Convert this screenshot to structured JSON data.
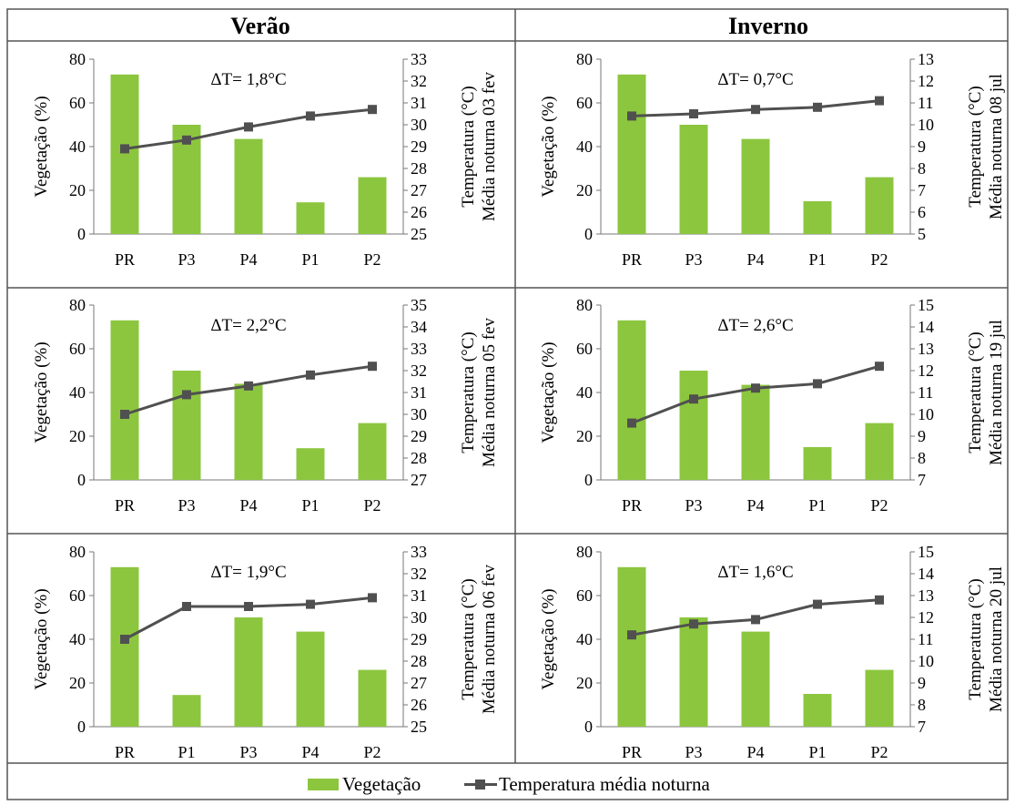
{
  "headers": {
    "left": "Verão",
    "right": "Inverno"
  },
  "legend": {
    "vegetation": "Vegetação",
    "temperature": "Temperatura média noturna"
  },
  "colors": {
    "bar": "#8cc63f",
    "line": "#505050",
    "border": "#555555"
  },
  "chart_data": [
    {
      "type": "bar+line",
      "annotation": "ΔT= 1,8°C",
      "categories": [
        "PR",
        "P3",
        "P4",
        "P1",
        "P2"
      ],
      "ylabel": "Vegetação (%)",
      "y2label": [
        "Temperatura (°C)",
        "Média noturna 03 fev"
      ],
      "ylim": [
        0,
        80
      ],
      "yticks": [
        "0",
        "20",
        "40",
        "60",
        "80"
      ],
      "y2lim": [
        25,
        33
      ],
      "y2ticks": [
        "25",
        "26",
        "27",
        "28",
        "29",
        "30",
        "31",
        "32",
        "33"
      ],
      "series": [
        {
          "name": "Vegetação",
          "type": "bar",
          "values": [
            73,
            50,
            43.5,
            14.5,
            26
          ]
        },
        {
          "name": "Temperatura média noturna",
          "type": "line",
          "axis": "right",
          "values": [
            28.9,
            29.3,
            29.9,
            30.4,
            30.7
          ]
        }
      ]
    },
    {
      "type": "bar+line",
      "annotation": "ΔT= 2,2°C",
      "categories": [
        "PR",
        "P3",
        "P4",
        "P1",
        "P2"
      ],
      "ylabel": "Vegetação (%)",
      "y2label": [
        "Temperatura (°C)",
        "Média noturna 05 fev"
      ],
      "ylim": [
        0,
        80
      ],
      "yticks": [
        "0",
        "20",
        "40",
        "60",
        "80"
      ],
      "y2lim": [
        27,
        35
      ],
      "y2ticks": [
        "27",
        "28",
        "29",
        "30",
        "31",
        "32",
        "33",
        "34",
        "35"
      ],
      "series": [
        {
          "name": "Vegetação",
          "type": "bar",
          "values": [
            73,
            50,
            44,
            14.5,
            26
          ]
        },
        {
          "name": "Temperatura média noturna",
          "type": "line",
          "axis": "right",
          "values": [
            30,
            30.9,
            31.3,
            31.8,
            32.2
          ]
        }
      ]
    },
    {
      "type": "bar+line",
      "annotation": "ΔT= 1,9°C",
      "categories": [
        "PR",
        "P1",
        "P3",
        "P4",
        "P2"
      ],
      "ylabel": "Vegetação (%)",
      "y2label": [
        "Temperatura (°C)",
        "Média noturna 06 fev"
      ],
      "ylim": [
        0,
        80
      ],
      "yticks": [
        "0",
        "20",
        "40",
        "60",
        "80"
      ],
      "y2lim": [
        25,
        33
      ],
      "y2ticks": [
        "25",
        "26",
        "27",
        "28",
        "29",
        "30",
        "31",
        "32",
        "33"
      ],
      "series": [
        {
          "name": "Vegetação",
          "type": "bar",
          "values": [
            73,
            14.5,
            50,
            43.5,
            26
          ]
        },
        {
          "name": "Temperatura média noturna",
          "type": "line",
          "axis": "right",
          "values": [
            29,
            30.5,
            30.5,
            30.6,
            30.9
          ]
        }
      ]
    },
    {
      "type": "bar+line",
      "annotation": "ΔT= 0,7°C",
      "categories": [
        "PR",
        "P3",
        "P4",
        "P1",
        "P2"
      ],
      "ylabel": "Vegetação (%)",
      "y2label": [
        "Temperatura (°C)",
        "Média noturna 08 jul"
      ],
      "ylim": [
        0,
        80
      ],
      "yticks": [
        "0",
        "20",
        "40",
        "60",
        "80"
      ],
      "y2lim": [
        5,
        13
      ],
      "y2ticks": [
        "5",
        "6",
        "7",
        "8",
        "9",
        "10",
        "11",
        "12",
        "13"
      ],
      "series": [
        {
          "name": "Vegetação",
          "type": "bar",
          "values": [
            73,
            50,
            43.5,
            15,
            26
          ]
        },
        {
          "name": "Temperatura média noturna",
          "type": "line",
          "axis": "right",
          "values": [
            10.4,
            10.5,
            10.7,
            10.8,
            11.1
          ]
        }
      ]
    },
    {
      "type": "bar+line",
      "annotation": "ΔT= 2,6°C",
      "categories": [
        "PR",
        "P3",
        "P4",
        "P1",
        "P2"
      ],
      "ylabel": "Vegetação (%)",
      "y2label": [
        "Temperatura (°C)",
        "Média noturna 19 jul"
      ],
      "ylim": [
        0,
        80
      ],
      "yticks": [
        "0",
        "20",
        "40",
        "60",
        "80"
      ],
      "y2lim": [
        7,
        15
      ],
      "y2ticks": [
        "7",
        "8",
        "9",
        "10",
        "11",
        "12",
        "13",
        "14",
        "15"
      ],
      "series": [
        {
          "name": "Vegetação",
          "type": "bar",
          "values": [
            73,
            50,
            43.5,
            15,
            26
          ]
        },
        {
          "name": "Temperatura média noturna",
          "type": "line",
          "axis": "right",
          "values": [
            9.6,
            10.7,
            11.2,
            11.4,
            12.2
          ]
        }
      ]
    },
    {
      "type": "bar+line",
      "annotation": "ΔT= 1,6°C",
      "categories": [
        "PR",
        "P3",
        "P4",
        "P1",
        "P2"
      ],
      "ylabel": "Vegetação (%)",
      "y2label": [
        "Temperatura (°C)",
        "Média noturna 20 jul"
      ],
      "ylim": [
        0,
        80
      ],
      "yticks": [
        "0",
        "20",
        "40",
        "60",
        "80"
      ],
      "y2lim": [
        7,
        15
      ],
      "y2ticks": [
        "7",
        "8",
        "9",
        "10",
        "11",
        "12",
        "13",
        "14",
        "15"
      ],
      "series": [
        {
          "name": "Vegetação",
          "type": "bar",
          "values": [
            73,
            50,
            43.5,
            15,
            26
          ]
        },
        {
          "name": "Temperatura média noturna",
          "type": "line",
          "axis": "right",
          "values": [
            11.2,
            11.7,
            11.9,
            12.6,
            12.8
          ]
        }
      ]
    }
  ]
}
